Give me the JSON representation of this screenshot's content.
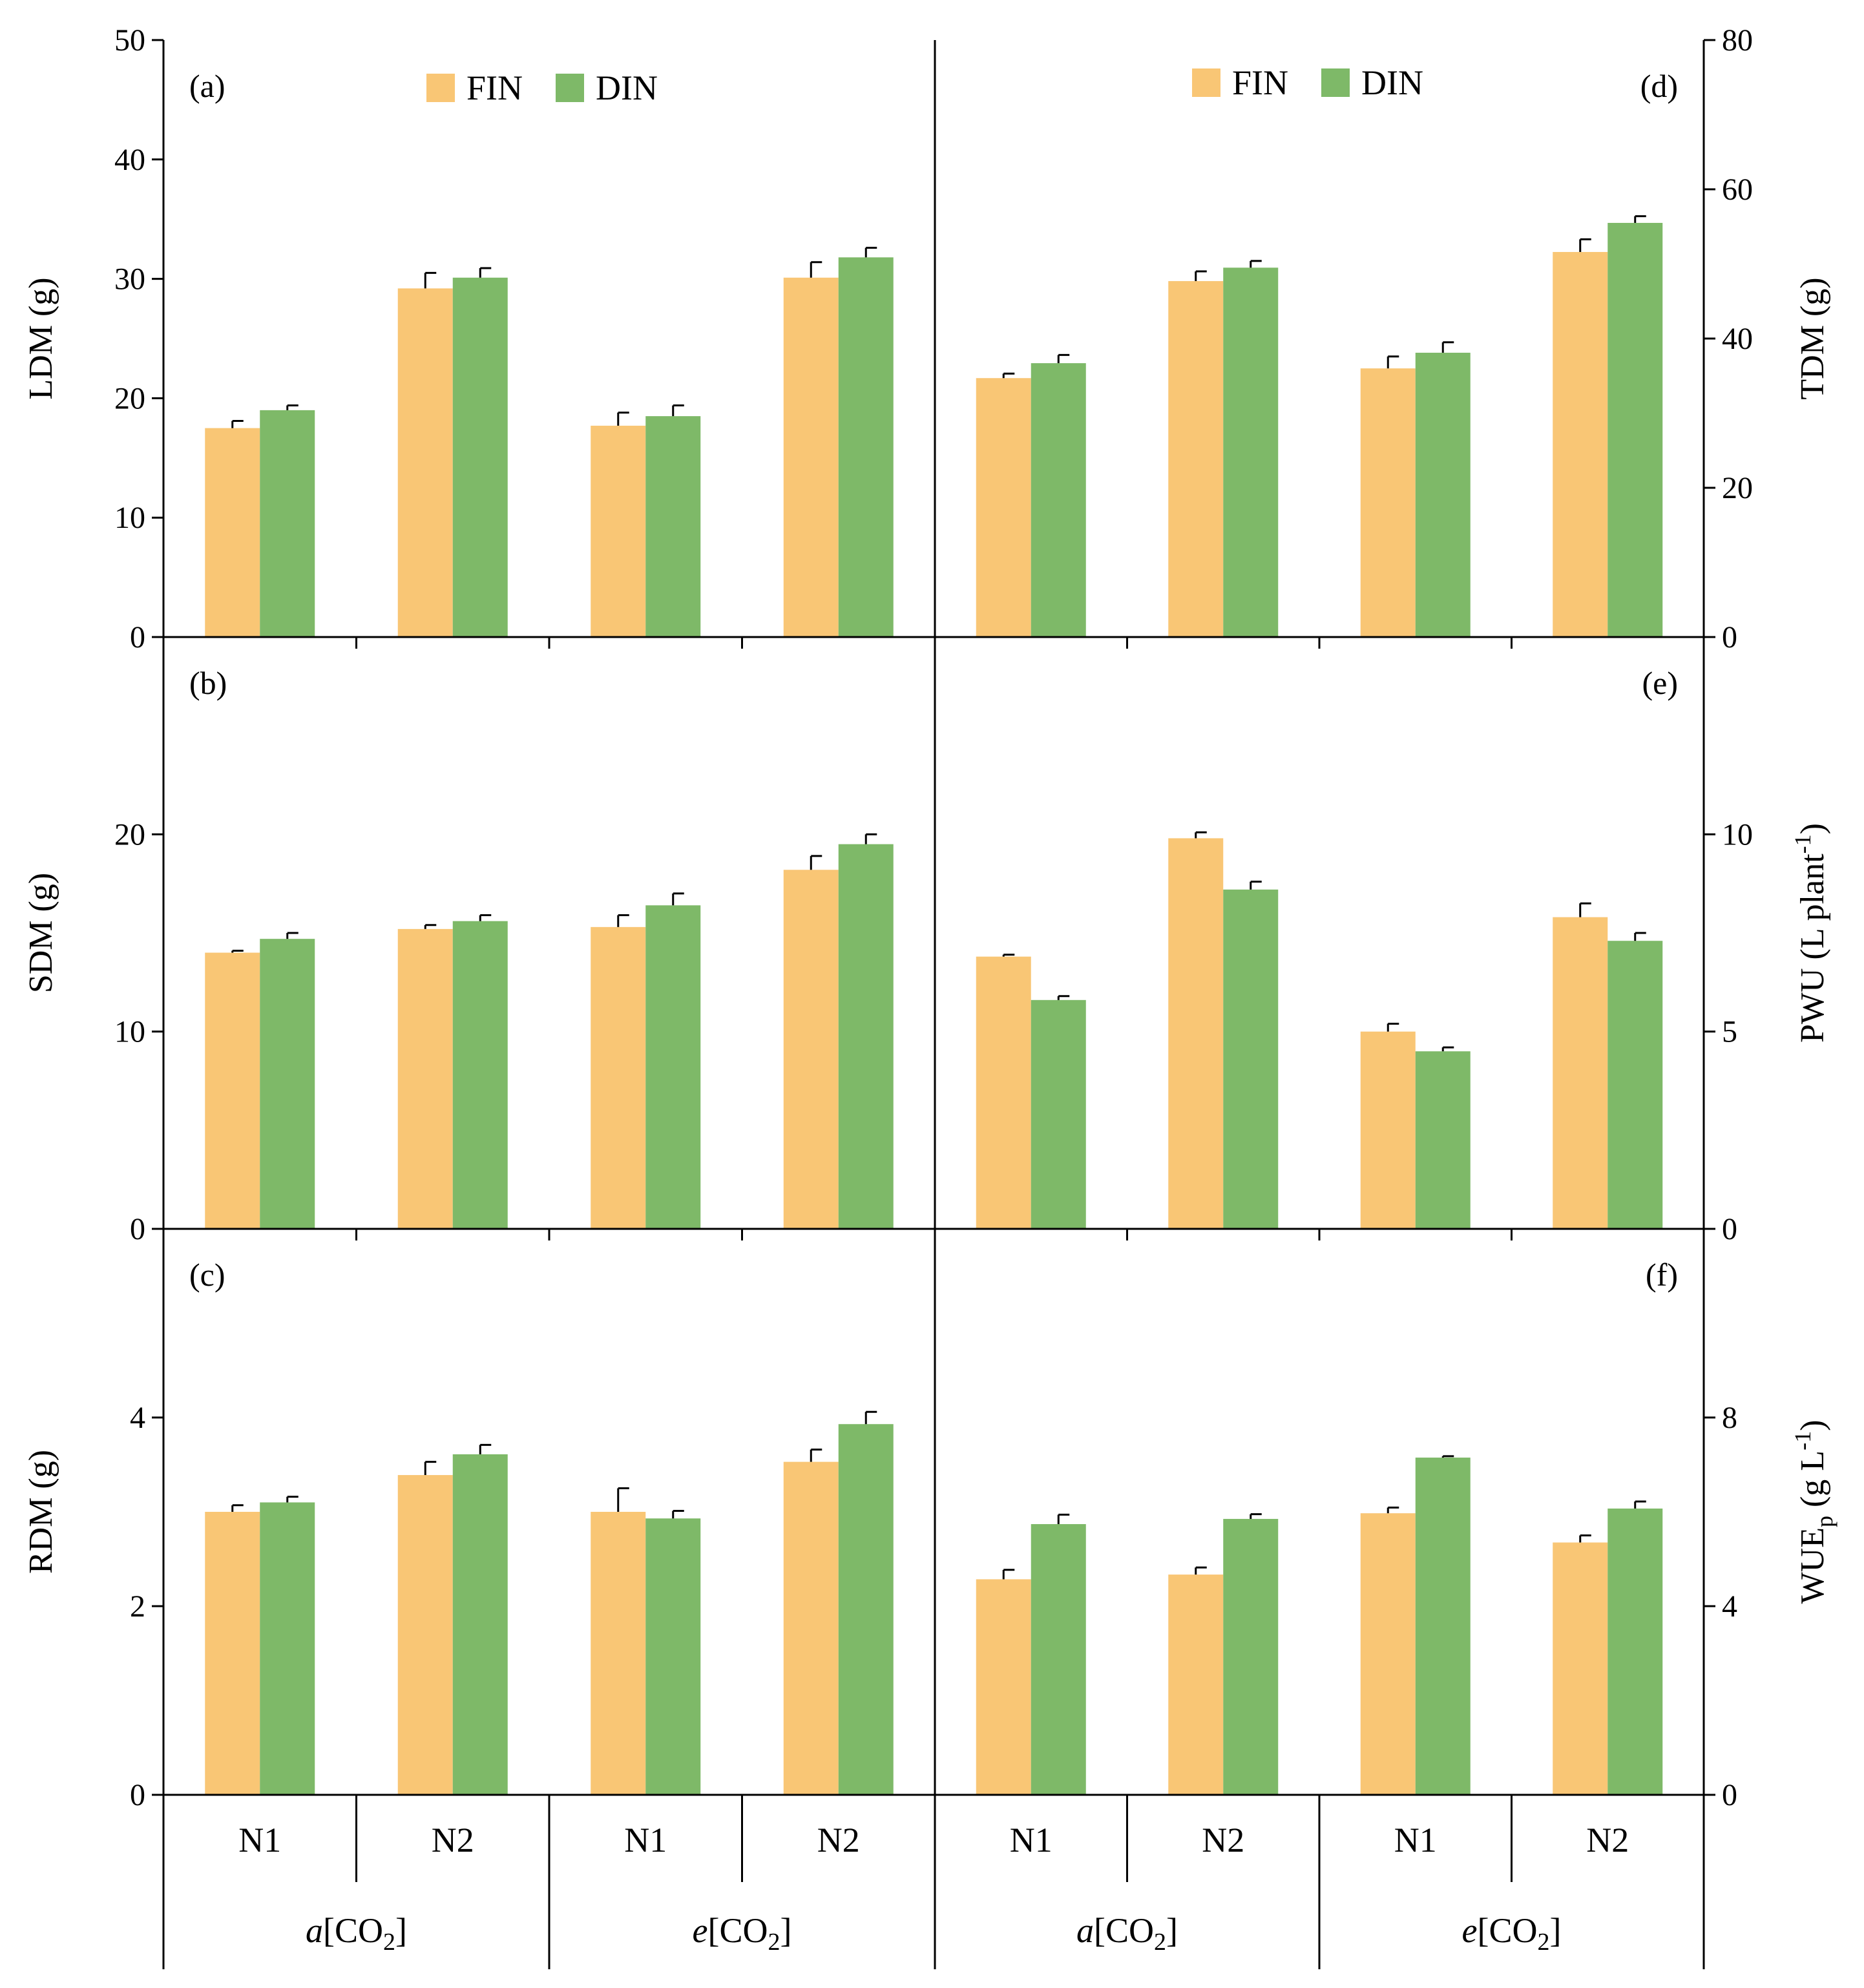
{
  "colors": {
    "FIN": "#F9C675",
    "DIN": "#7EB968"
  },
  "legend": [
    {
      "key": "FIN",
      "label": "FIN"
    },
    {
      "key": "DIN",
      "label": "DIN"
    }
  ],
  "categories": {
    "n_levels": [
      "N1",
      "N2",
      "N1",
      "N2"
    ],
    "co2_groups": [
      {
        "prefix": "a",
        "main": "[CO",
        "sub": "2",
        "end": "]"
      },
      {
        "prefix": "e",
        "main": "[CO",
        "sub": "2",
        "end": "]"
      }
    ]
  },
  "chart_data": [
    {
      "type": "bar",
      "panel": "(a)",
      "title": "",
      "ylabel": "LDM (g)",
      "ylim": [
        0,
        50
      ],
      "yticks": [
        0,
        10,
        20,
        30,
        40,
        50
      ],
      "categories": [
        "a[CO2] N1",
        "a[CO2] N2",
        "e[CO2] N1",
        "e[CO2] N2"
      ],
      "series": [
        {
          "name": "FIN",
          "values": [
            17.5,
            29.2,
            17.7,
            30.1
          ],
          "errors": [
            0.6,
            1.3,
            1.1,
            1.3
          ]
        },
        {
          "name": "DIN",
          "values": [
            19.0,
            30.1,
            18.5,
            31.8
          ],
          "errors": [
            0.4,
            0.8,
            0.9,
            0.8
          ]
        }
      ]
    },
    {
      "type": "bar",
      "panel": "(b)",
      "title": "",
      "ylabel": "SDM (g)",
      "ylim": [
        0,
        30
      ],
      "yticks": [
        0,
        10,
        20
      ],
      "categories": [
        "a[CO2] N1",
        "a[CO2] N2",
        "e[CO2] N1",
        "e[CO2] N2"
      ],
      "series": [
        {
          "name": "FIN",
          "values": [
            14.0,
            15.2,
            15.3,
            18.2
          ],
          "errors": [
            0.1,
            0.2,
            0.6,
            0.7
          ]
        },
        {
          "name": "DIN",
          "values": [
            14.7,
            15.6,
            16.4,
            19.5
          ],
          "errors": [
            0.3,
            0.3,
            0.6,
            0.5
          ]
        }
      ]
    },
    {
      "type": "bar",
      "panel": "(c)",
      "title": "",
      "ylabel": "RDM (g)",
      "ylim": [
        0,
        6
      ],
      "yticks": [
        0,
        2,
        4
      ],
      "categories": [
        "a[CO2] N1",
        "a[CO2] N2",
        "e[CO2] N1",
        "e[CO2] N2"
      ],
      "series": [
        {
          "name": "FIN",
          "values": [
            3.0,
            3.39,
            3.0,
            3.53
          ],
          "errors": [
            0.07,
            0.14,
            0.25,
            0.13
          ]
        },
        {
          "name": "DIN",
          "values": [
            3.1,
            3.61,
            2.93,
            3.93
          ],
          "errors": [
            0.06,
            0.1,
            0.08,
            0.13
          ]
        }
      ]
    },
    {
      "type": "bar",
      "panel": "(d)",
      "title": "",
      "ylabel": "TDM (g)",
      "ylim": [
        0,
        80
      ],
      "yticks": [
        0,
        20,
        40,
        60,
        80
      ],
      "categories": [
        "a[CO2] N1",
        "a[CO2] N2",
        "e[CO2] N1",
        "e[CO2] N2"
      ],
      "series": [
        {
          "name": "FIN",
          "values": [
            34.7,
            47.7,
            36.0,
            51.6
          ],
          "errors": [
            0.6,
            1.3,
            1.6,
            1.7
          ]
        },
        {
          "name": "DIN",
          "values": [
            36.7,
            49.5,
            38.1,
            55.5
          ],
          "errors": [
            1.1,
            0.9,
            1.4,
            0.9
          ]
        }
      ]
    },
    {
      "type": "bar",
      "panel": "(e)",
      "title": "",
      "ylabel": "PWU (L plant⁻¹)",
      "ylim": [
        0,
        15
      ],
      "yticks": [
        0,
        5,
        10
      ],
      "categories": [
        "a[CO2] N1",
        "a[CO2] N2",
        "e[CO2] N1",
        "e[CO2] N2"
      ],
      "series": [
        {
          "name": "FIN",
          "values": [
            6.9,
            9.9,
            5.0,
            7.9
          ],
          "errors": [
            0.05,
            0.15,
            0.2,
            0.35
          ]
        },
        {
          "name": "DIN",
          "values": [
            5.8,
            8.6,
            4.5,
            7.3
          ],
          "errors": [
            0.1,
            0.2,
            0.1,
            0.2
          ]
        }
      ]
    },
    {
      "type": "bar",
      "panel": "(f)",
      "title": "",
      "ylabel": "WUEp (g L⁻¹)",
      "ylim": [
        0,
        12
      ],
      "yticks": [
        0,
        4,
        8
      ],
      "categories": [
        "a[CO2] N1",
        "a[CO2] N2",
        "e[CO2] N1",
        "e[CO2] N2"
      ],
      "series": [
        {
          "name": "FIN",
          "values": [
            4.57,
            4.67,
            5.97,
            5.35
          ],
          "errors": [
            0.2,
            0.15,
            0.12,
            0.15
          ]
        },
        {
          "name": "DIN",
          "values": [
            5.74,
            5.85,
            7.15,
            6.07
          ],
          "errors": [
            0.2,
            0.1,
            0.03,
            0.15
          ]
        }
      ]
    }
  ],
  "axis_text": {
    "ylabel_e": {
      "main": "PWU (L plant",
      "sup": "-1",
      "end": ")"
    },
    "ylabel_f": {
      "main": "WUE",
      "sub": "p",
      "mid": " (g L",
      "sup": "-1",
      "end": ")"
    }
  }
}
